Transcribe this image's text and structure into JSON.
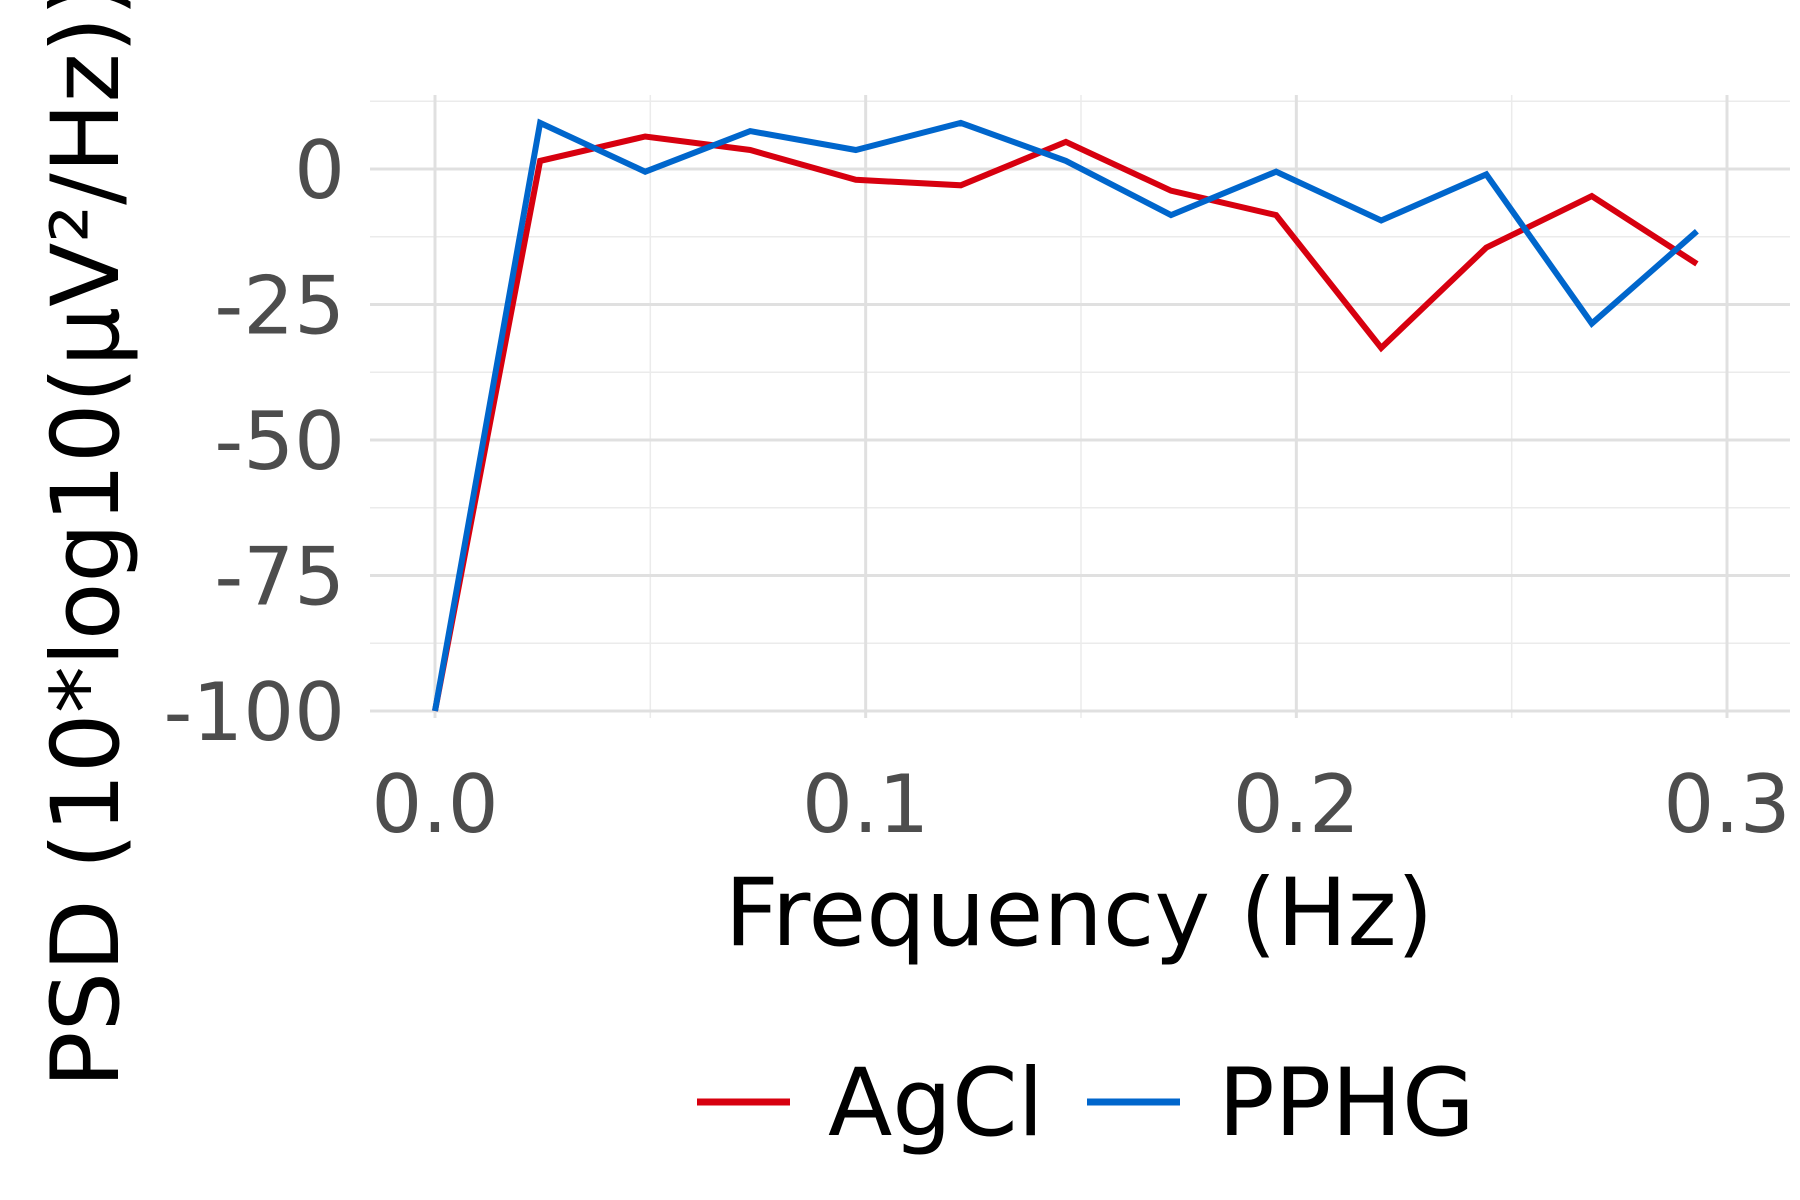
{
  "chart_data": {
    "type": "line",
    "title": "",
    "xlabel": "Frequency (Hz)",
    "ylabel": "PSD (10*log10(µV²/Hz))",
    "xlim": [
      0,
      0.3
    ],
    "ylim": [
      -100,
      8
    ],
    "x_ticks": [
      0.0,
      0.1,
      0.2,
      0.3
    ],
    "x_tick_labels": [
      "0.0",
      "0.1",
      "0.2",
      "0.3"
    ],
    "y_ticks": [
      -100,
      -75,
      -50,
      -25,
      0
    ],
    "y_tick_labels": [
      "-100",
      "-75",
      "-50",
      "-25",
      "0"
    ],
    "grid": true,
    "legend_position": "bottom",
    "series": [
      {
        "name": "AgCl",
        "color": "#d7000f",
        "x": [
          0.0,
          0.0244,
          0.0488,
          0.0732,
          0.0977,
          0.1221,
          0.1465,
          0.1709,
          0.1953,
          0.2197,
          0.2441,
          0.2686,
          0.293
        ],
        "y": [
          -100,
          1.5,
          6,
          3.5,
          -2,
          -3,
          5,
          -4,
          -8.5,
          -33,
          -14.5,
          -5,
          -17.5
        ]
      },
      {
        "name": "PPHG",
        "color": "#0066cc",
        "x": [
          0.0,
          0.0244,
          0.0488,
          0.0732,
          0.0977,
          0.1221,
          0.1465,
          0.1709,
          0.1953,
          0.2197,
          0.2441,
          0.2686,
          0.293
        ],
        "y": [
          -100,
          8.5,
          -0.5,
          7,
          3.5,
          8.5,
          1.5,
          -8.5,
          -0.5,
          -9.5,
          -1,
          -28.5,
          -11.5
        ]
      }
    ]
  }
}
